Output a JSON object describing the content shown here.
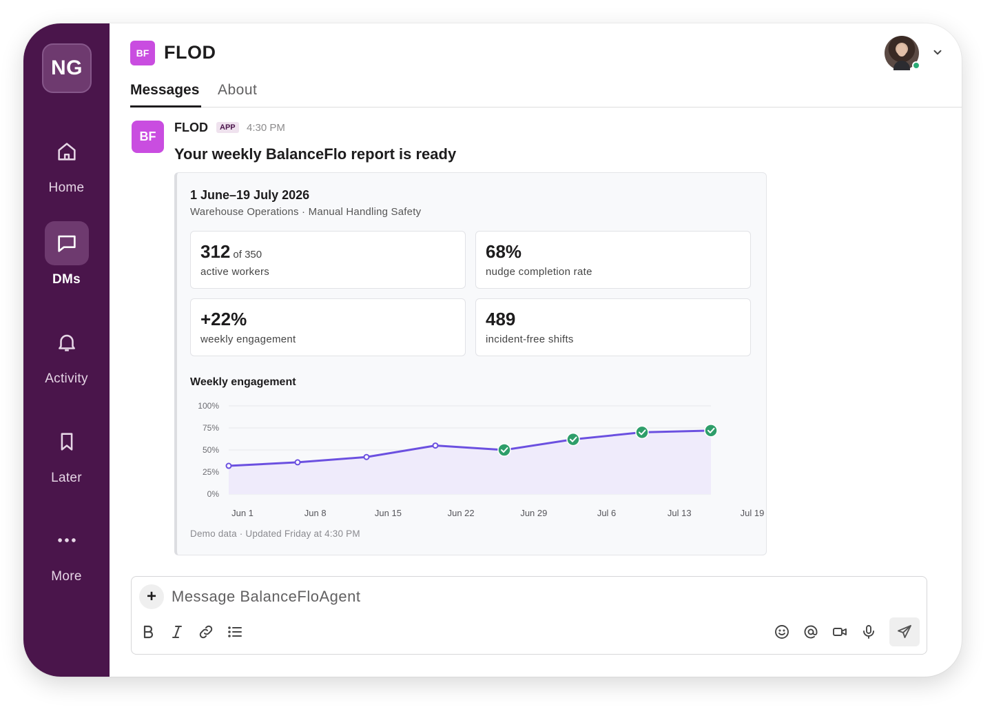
{
  "workspace": {
    "initials": "NG"
  },
  "sidebar": {
    "items": [
      {
        "label": "Home",
        "icon": "home-icon",
        "active": false
      },
      {
        "label": "DMs",
        "icon": "chat-icon",
        "active": true
      },
      {
        "label": "Activity",
        "icon": "bell-icon",
        "active": false
      },
      {
        "label": "Later",
        "icon": "bookmark-icon",
        "active": false
      },
      {
        "label": "More",
        "icon": "more-icon",
        "active": false
      }
    ]
  },
  "header": {
    "logo": "BF",
    "title": "FLOD",
    "tabs": [
      {
        "label": "Messages",
        "active": true
      },
      {
        "label": "About",
        "active": false
      }
    ],
    "user_status": "online"
  },
  "message": {
    "avatar": "BF",
    "sender": "FLOD",
    "badge": "APP",
    "time": "4:30 PM",
    "title": "Your weekly BalanceFlo report is ready",
    "card": {
      "period": "1 June–19 July 2026",
      "subtitle": "Warehouse Operations · Manual Handling Safety",
      "stats": [
        {
          "value": "312",
          "suffix": "of 350",
          "label": "active workers"
        },
        {
          "value": "68%",
          "suffix": "",
          "label": "nudge completion rate"
        },
        {
          "value": "+22%",
          "suffix": "",
          "label": "weekly engagement"
        },
        {
          "value": "489",
          "suffix": "",
          "label": "incident-free shifts"
        }
      ],
      "chart_title": "Weekly engagement",
      "footnote": "Demo data · Updated Friday at 4:30 PM"
    }
  },
  "chart_data": {
    "type": "area",
    "title": "Weekly engagement",
    "y_ticks": [
      "100%",
      "75%",
      "50%",
      "25%",
      "0%"
    ],
    "ylim": [
      0,
      100
    ],
    "x_labels": [
      "Jun 1",
      "Jun 8",
      "Jun 15",
      "Jun 22",
      "Jun 29",
      "Jul 6",
      "Jul 13",
      "Jul 19"
    ],
    "series": [
      {
        "values": [
          32,
          36,
          42,
          55,
          50,
          62,
          70,
          72
        ],
        "milestone_reached": [
          false,
          false,
          false,
          false,
          true,
          true,
          true,
          true
        ]
      }
    ],
    "grid": true,
    "colors": {
      "line": "#6b50e0",
      "fill": "#efebfb",
      "milestone": "#2e9e6a"
    }
  },
  "composer": {
    "placeholder": "Message BalanceFloAgent",
    "value": "",
    "tools": [
      "bold-icon",
      "italic-icon",
      "link-icon",
      "list-icon"
    ],
    "actions": [
      "emoji-icon",
      "mention-icon",
      "video-icon",
      "mic-icon"
    ]
  },
  "colors": {
    "sidebar": "#4a154b",
    "brand": "#c94de0",
    "online": "#2bac76"
  }
}
